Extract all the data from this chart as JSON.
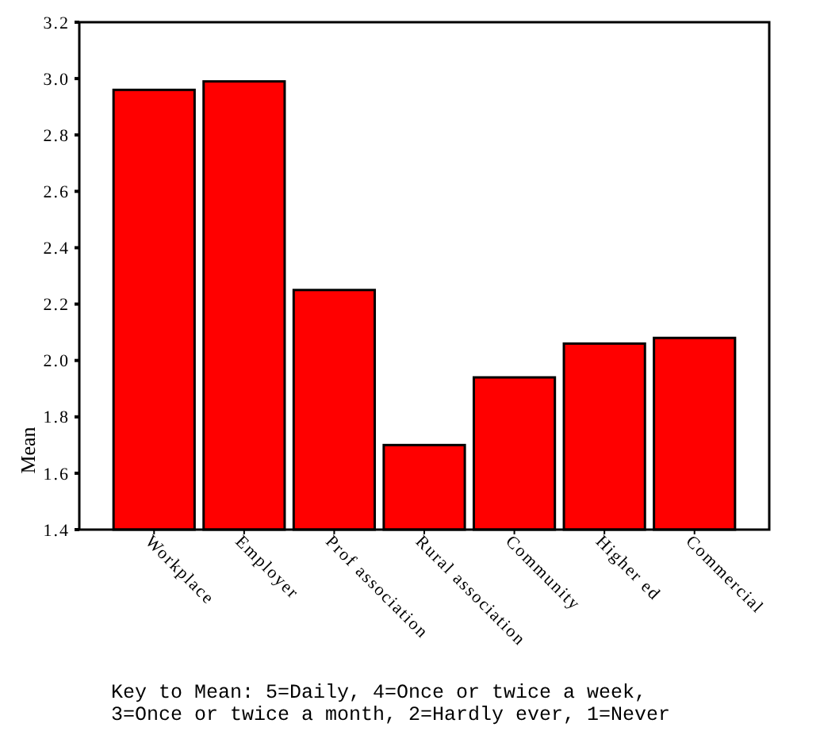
{
  "chart_data": {
    "type": "bar",
    "ylabel": "Mean",
    "categories": [
      "Workplace",
      "Employer",
      "Prof association",
      "Rural association",
      "Community",
      "Higher ed",
      "Commercial"
    ],
    "values": [
      2.96,
      2.99,
      2.25,
      1.7,
      1.94,
      2.06,
      2.08
    ],
    "color": "#ff0000",
    "ylim": [
      1.4,
      3.2
    ],
    "yticks": [
      {
        "value": 1.4,
        "label": "1.4"
      },
      {
        "value": 1.6,
        "label": "1.6"
      },
      {
        "value": 1.8,
        "label": "1.8"
      },
      {
        "value": 2.0,
        "label": "2.0"
      },
      {
        "value": 2.2,
        "label": "2.2"
      },
      {
        "value": 2.4,
        "label": "2.4"
      },
      {
        "value": 2.6,
        "label": "2.6"
      },
      {
        "value": 2.8,
        "label": "2.8"
      },
      {
        "value": 3.0,
        "label": "3.0"
      },
      {
        "value": 3.2,
        "label": "3.2"
      }
    ],
    "grid": false,
    "annotations": [
      "Key to Mean: 5=Daily, 4=Once or twice a week,",
      "3=Once or twice a month, 2=Hardly ever, 1=Never"
    ]
  }
}
